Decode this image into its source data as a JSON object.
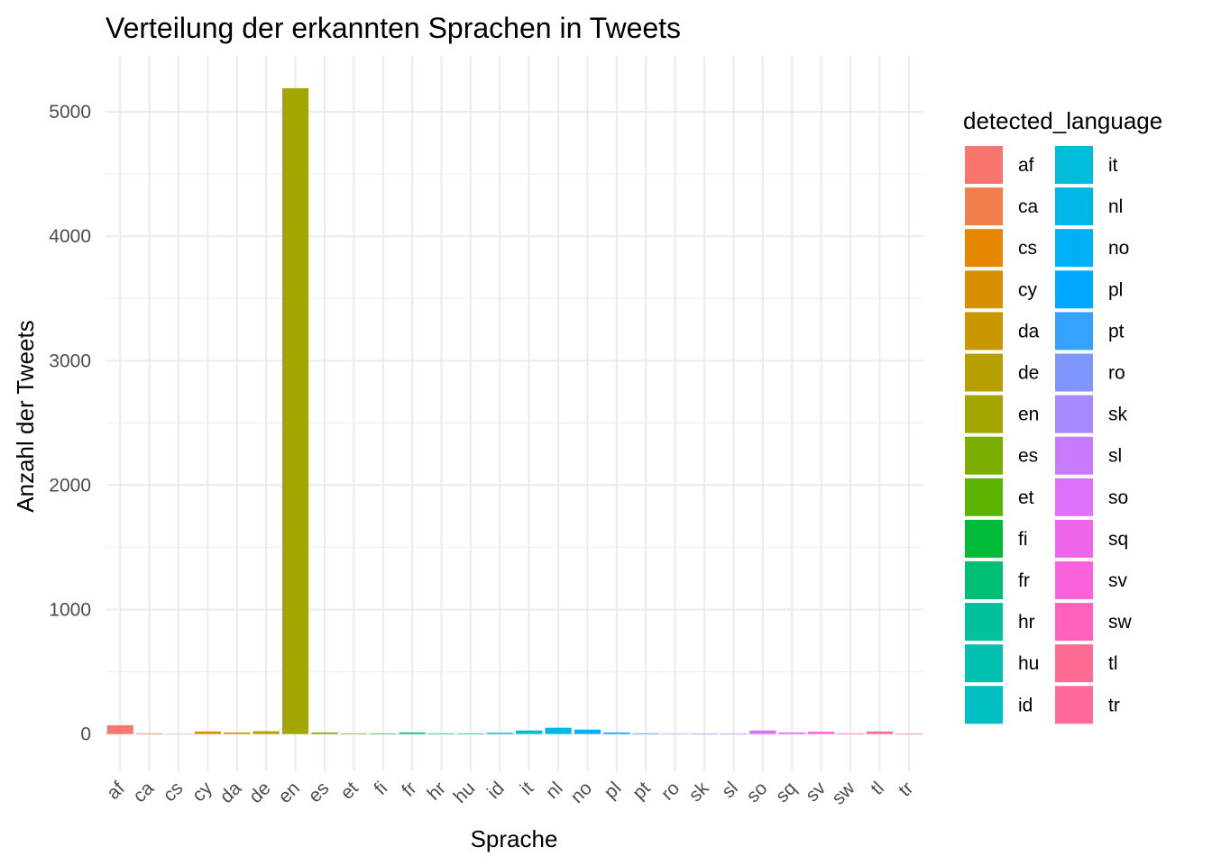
{
  "chart_data": {
    "type": "bar",
    "title": "Verteilung der erkannten Sprachen in Tweets",
    "xlabel": "Sprache",
    "ylabel": "Anzahl der Tweets",
    "ylim": [
      -300,
      5450
    ],
    "y_ticks": [
      0,
      1000,
      2000,
      3000,
      4000,
      5000
    ],
    "grid": true,
    "legend_position": "right",
    "legend_title": "detected_language",
    "categories": [
      "af",
      "ca",
      "cs",
      "cy",
      "da",
      "de",
      "en",
      "es",
      "et",
      "fi",
      "fr",
      "hr",
      "hu",
      "id",
      "it",
      "nl",
      "no",
      "pl",
      "pt",
      "ro",
      "sk",
      "sl",
      "so",
      "sq",
      "sv",
      "sw",
      "tl",
      "tr"
    ],
    "values": [
      70,
      5,
      1,
      20,
      12,
      22,
      5190,
      12,
      4,
      4,
      12,
      5,
      5,
      10,
      28,
      50,
      35,
      12,
      5,
      3,
      4,
      4,
      28,
      12,
      18,
      5,
      20,
      4
    ],
    "colors": [
      "#F8766D",
      "#F07F4B",
      "#E58700",
      "#D89000",
      "#C99800",
      "#B79F00",
      "#A3A500",
      "#7CAE00",
      "#5BB300",
      "#00BA38",
      "#00BF74",
      "#00C19C",
      "#00C0AF",
      "#00BFC4",
      "#00BCD8",
      "#00B8E7",
      "#00B0F6",
      "#00A9FF",
      "#35A2FF",
      "#7F96FF",
      "#A58AFF",
      "#C77CFF",
      "#DE71F9",
      "#F066EA",
      "#FA62DB",
      "#FF62BC",
      "#FF6C91",
      "#FF6A98"
    ]
  }
}
